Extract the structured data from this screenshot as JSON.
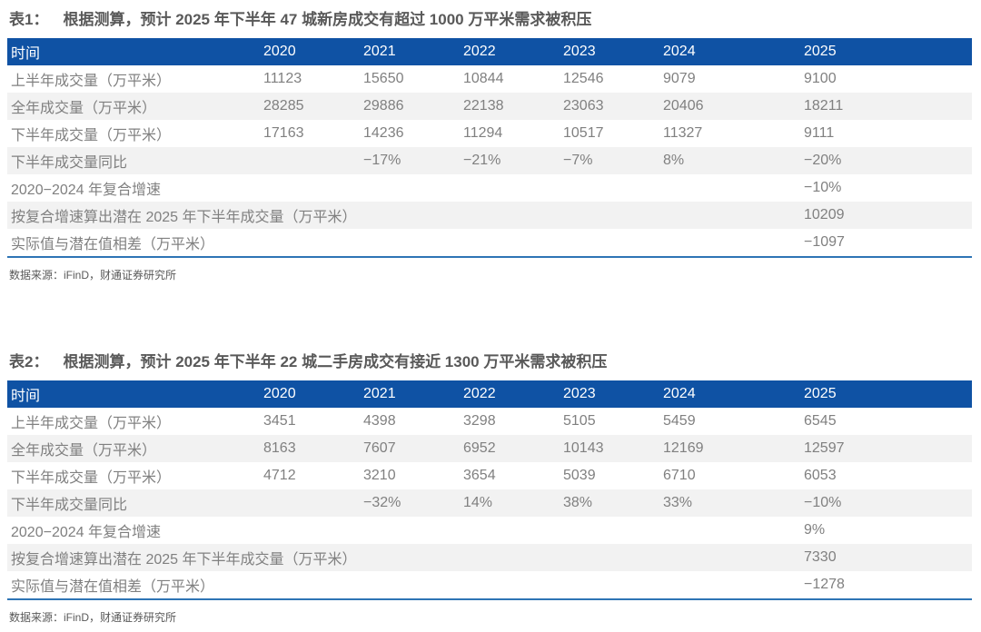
{
  "colors": {
    "header_bg": "#0F52A4",
    "header_text": "#FFFFFF",
    "row_alt_bg": "#F2F2F2",
    "bottom_border": "#2E74B5",
    "title_text": "#595959",
    "cell_text": "#808080",
    "source_text": "#595959"
  },
  "tables": [
    {
      "title_label": "表1：",
      "title_text": "根据测算，预计 2025 年下半年 47 城新房成交有超过 1000 万平米需求被积压",
      "columns": [
        "时间",
        "2020",
        "2021",
        "2022",
        "2023",
        "2024",
        "2025"
      ],
      "rows": [
        {
          "label": "上半年成交量（万平米）",
          "values": [
            "11123",
            "15650",
            "10844",
            "12546",
            "9079",
            "9100"
          ]
        },
        {
          "label": "全年成交量（万平米）",
          "values": [
            "28285",
            "29886",
            "22138",
            "23063",
            "20406",
            "18211"
          ]
        },
        {
          "label": "下半年成交量（万平米）",
          "values": [
            "17163",
            "14236",
            "11294",
            "10517",
            "11327",
            "9111"
          ]
        },
        {
          "label": "下半年成交量同比",
          "values": [
            "",
            "−17%",
            "−21%",
            "−7%",
            "8%",
            "−20%"
          ]
        },
        {
          "label": "2020−2024 年复合增速",
          "values": [
            "",
            "",
            "",
            "",
            "",
            "−10%"
          ]
        },
        {
          "label": "按复合增速算出潜在 2025 年下半年成交量（万平米）",
          "values": [
            "",
            "",
            "",
            "",
            "",
            "10209"
          ]
        },
        {
          "label": "实际值与潜在值相差（万平米）",
          "values": [
            "",
            "",
            "",
            "",
            "",
            "−1097"
          ]
        }
      ],
      "source": "数据来源：iFinD，财通证券研究所"
    },
    {
      "title_label": "表2：",
      "title_text": "根据测算，预计 2025 年下半年 22 城二手房成交有接近 1300 万平米需求被积压",
      "columns": [
        "时间",
        "2020",
        "2021",
        "2022",
        "2023",
        "2024",
        "2025"
      ],
      "rows": [
        {
          "label": "上半年成交量（万平米）",
          "values": [
            "3451",
            "4398",
            "3298",
            "5105",
            "5459",
            "6545"
          ]
        },
        {
          "label": "全年成交量（万平米）",
          "values": [
            "8163",
            "7607",
            "6952",
            "10143",
            "12169",
            "12597"
          ]
        },
        {
          "label": "下半年成交量（万平米）",
          "values": [
            "4712",
            "3210",
            "3654",
            "5039",
            "6710",
            "6053"
          ]
        },
        {
          "label": "下半年成交量同比",
          "values": [
            "",
            "−32%",
            "14%",
            "38%",
            "33%",
            "−10%"
          ]
        },
        {
          "label": "2020−2024 年复合增速",
          "values": [
            "",
            "",
            "",
            "",
            "",
            "9%"
          ]
        },
        {
          "label": "按复合增速算出潜在 2025 年下半年成交量（万平米）",
          "values": [
            "",
            "",
            "",
            "",
            "",
            "7330"
          ]
        },
        {
          "label": "实际值与潜在值相差（万平米）",
          "values": [
            "",
            "",
            "",
            "",
            "",
            "−1278"
          ]
        }
      ],
      "source": "数据来源：iFinD，财通证券研究所"
    }
  ]
}
